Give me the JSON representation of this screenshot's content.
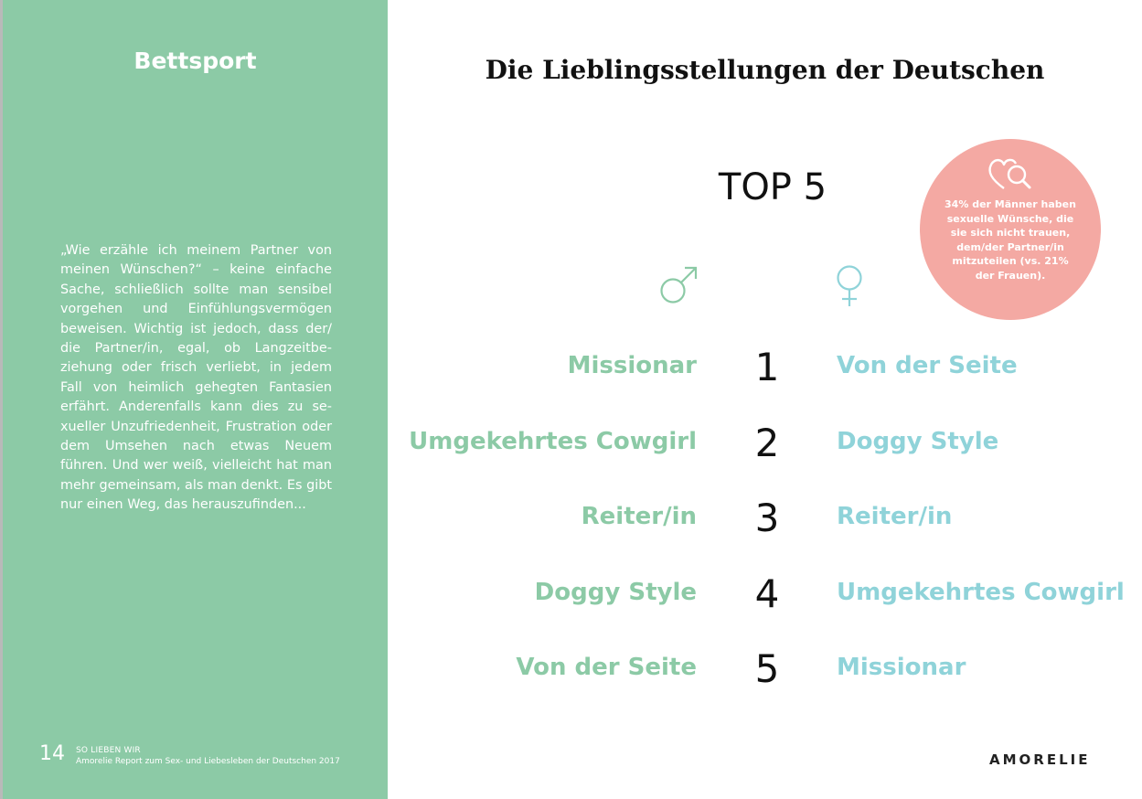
{
  "sidebar": {
    "title": "Bettsport",
    "body": "„Wie erzähle ich meinem Partner von meinen Wünschen?“ – keine einfache Sache, schließlich sollte man sensibel vorgehen und Einfühlungsvermögen beweisen. Wichtig ist jedoch, dass der/ die Partner/in, egal, ob Langzeit­be­ziehung oder frisch verliebt, in jedem Fall von heimlich gehegten Fantasien erfährt. Anderenfalls kann dies zu se­xueller Unzufriedenheit, Frustration oder dem Umsehen nach etwas Neu­em führen. Und wer weiß, vielleicht hat man mehr gemeinsam, als man denkt. Es gibt nur einen Weg, das herauszufin­den...",
    "page_number": "14",
    "footer_line1": "SO LIEBEN WIR",
    "footer_line2": "Amorelie Report zum Sex- und Liebesleben der Deutschen 2017"
  },
  "main": {
    "title": "Die Lieblingsstellungen der Deutschen",
    "top_label": "TOP 5",
    "male_icon": "male-symbol-icon",
    "female_icon": "female-symbol-icon",
    "bubble": {
      "icon": "hearts-magnifier-icon",
      "text": "34% der Männer haben sexuelle Wün­sche, die sie sich nicht trauen, dem/der Part­ner/in mitzuteilen (vs. 21% der Frauen)."
    },
    "rows": [
      {
        "rank": "1",
        "male": "Missionar",
        "female": "Von der Seite"
      },
      {
        "rank": "2",
        "male": "Umgekehrtes Cowgirl",
        "female": "Doggy Style"
      },
      {
        "rank": "3",
        "male": "Reiter/in",
        "female": "Reiter/in"
      },
      {
        "rank": "4",
        "male": "Doggy Style",
        "female": "Umgekehrtes Cowgirl"
      },
      {
        "rank": "5",
        "male": "Von der Seite",
        "female": "Missionar"
      }
    ],
    "brand": "AMORELIE"
  },
  "colors": {
    "sidebar_green": "#8ccaa6",
    "male_green": "#8ccaa6",
    "female_blue": "#8fd3d9",
    "bubble_pink": "#f4a9a3"
  }
}
